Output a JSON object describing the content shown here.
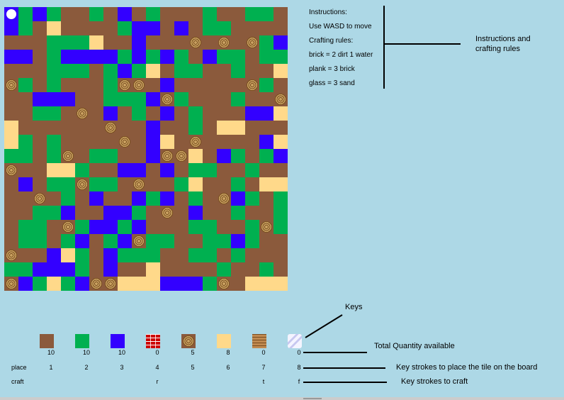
{
  "board": {
    "grid": [
      "P1210010201000100110",
      "2105000012202011000",
      "00011150020004040412",
      "22012222121210211011",
      "00011101215011001005",
      "41010001440200000410",
      "00222001112410001004",
      "00110402010201000225",
      "50000004002001055000",
      "51010000402504000025",
      "11014011002445021012",
      "40055100220201100100",
      "02011411040015001055",
      "00401020021201042101",
      "00112002210402001001",
      "01104122120001100141",
      "01101201241100112100",
      "40025102111001101000",
      "11222102005000010010",
      "42151244555222140555"
    ]
  },
  "instructions": {
    "title": "Instructions:",
    "move": "Use WASD to move",
    "crafting_title": "Crafting rules:",
    "rule1": "brick = 2 dirt 1 water",
    "rule2": "plank = 3 brick",
    "rule3": "glass = 3 sand"
  },
  "annotations": {
    "instructions_label_line1": "Instructions and",
    "instructions_label_line2": "crafting rules",
    "keys": "Keys",
    "total_quantity": "Total Quantity available",
    "place_keys": "Key strokes to place the tile on the board",
    "craft_keys": "Key strokes to craft"
  },
  "inventory": {
    "place_label": "place",
    "craft_label": "craft",
    "items": [
      {
        "icon": "dirt-icon",
        "quantity": "10",
        "place_key": "1",
        "craft_key": ""
      },
      {
        "icon": "grass-icon",
        "quantity": "10",
        "place_key": "2",
        "craft_key": ""
      },
      {
        "icon": "water-icon",
        "quantity": "10",
        "place_key": "3",
        "craft_key": ""
      },
      {
        "icon": "brick-icon",
        "quantity": "0",
        "place_key": "4",
        "craft_key": "r"
      },
      {
        "icon": "wood-icon",
        "quantity": "5",
        "place_key": "5",
        "craft_key": ""
      },
      {
        "icon": "sand-icon",
        "quantity": "8",
        "place_key": "6",
        "craft_key": ""
      },
      {
        "icon": "plank-icon",
        "quantity": "0",
        "place_key": "7",
        "craft_key": "t"
      },
      {
        "icon": "glass-icon",
        "quantity": "0",
        "place_key": "8",
        "craft_key": "f"
      }
    ]
  },
  "colors": {
    "background": "#add8e6",
    "dirt": "#8b5a3c",
    "grass": "#00b050",
    "water": "#3300ff",
    "sand": "#ffd98a"
  }
}
